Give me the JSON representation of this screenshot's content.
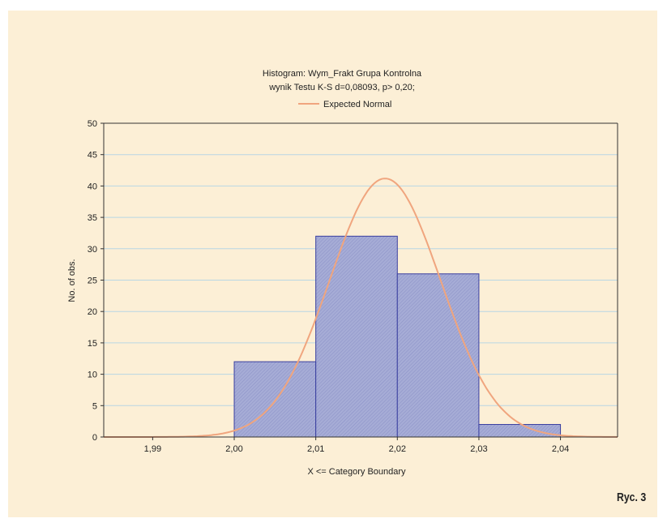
{
  "chart_data": {
    "type": "bar",
    "title": "Histogram: Wym_Frakt Grupa Kontrolna",
    "subtitle": "wynik Testu K-S d=0,08093, p> 0,20;",
    "xlabel": "X <= Category Boundary",
    "ylabel": "No. of obs.",
    "x_ticks": [
      "1,99",
      "2,00",
      "2,01",
      "2,02",
      "2,03",
      "2,04"
    ],
    "y_ticks": [
      "0",
      "5",
      "10",
      "15",
      "20",
      "25",
      "30",
      "35",
      "40",
      "45",
      "50"
    ],
    "xlim": [
      1.984,
      2.047
    ],
    "ylim": [
      0,
      50
    ],
    "bins": [
      {
        "from": 2.0,
        "to": 2.01,
        "value": 12
      },
      {
        "from": 2.01,
        "to": 2.02,
        "value": 32
      },
      {
        "from": 2.02,
        "to": 2.03,
        "value": 26
      },
      {
        "from": 2.03,
        "to": 2.04,
        "value": 2
      }
    ],
    "series": [
      {
        "name": "Expected Normal",
        "type": "line",
        "mean": 2.0185,
        "peak": 41.2,
        "sd": 0.0068
      }
    ],
    "grid": true,
    "legend": "top-center",
    "colors": {
      "bar_fill": "#a6acd6",
      "bar_edge": "#3a3fa0",
      "curve": "#f0a57e",
      "grid": "#b8d6e4",
      "axis": "#333333",
      "background": "#fcefd6"
    }
  },
  "figure": {
    "caption": "Ryc. 3"
  }
}
